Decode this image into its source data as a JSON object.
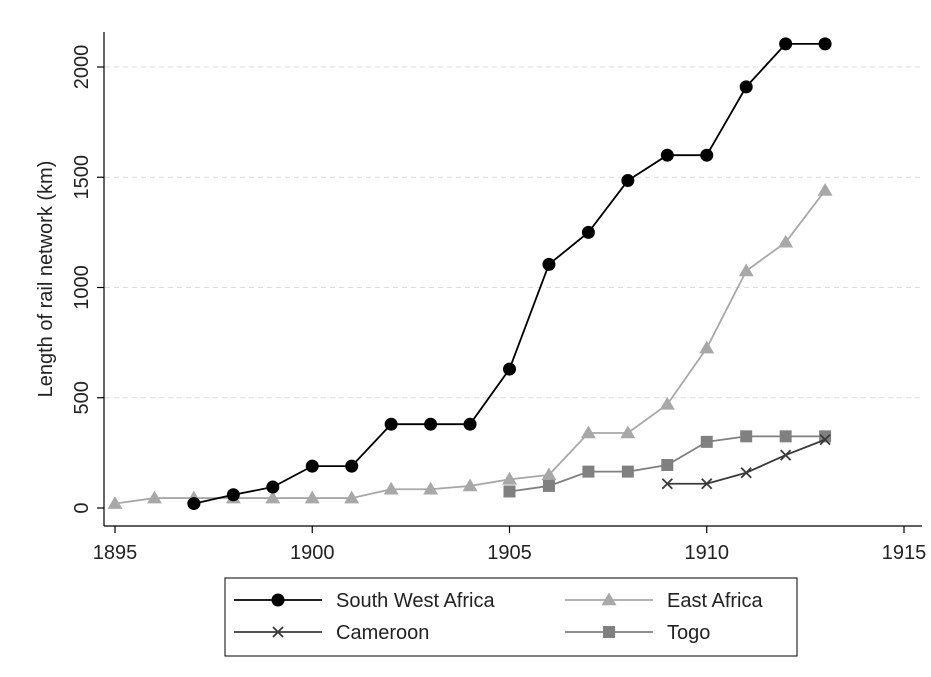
{
  "chart_data": {
    "type": "line",
    "title": "",
    "xlabel": "",
    "ylabel": "Length of rail network (km)",
    "xlim": [
      1895,
      1915
    ],
    "ylim": [
      0,
      2200
    ],
    "xticks": [
      1895,
      1900,
      1905,
      1910,
      1915
    ],
    "yticks": [
      0,
      500,
      1000,
      1500,
      2000
    ],
    "grid": "horizontal dashed",
    "legend_position": "bottom",
    "series": [
      {
        "name": "South West Africa",
        "color": "#000000",
        "marker": "circle",
        "x": [
          1897,
          1898,
          1899,
          1900,
          1901,
          1902,
          1903,
          1904,
          1905,
          1906,
          1907,
          1908,
          1909,
          1910,
          1911,
          1912,
          1913
        ],
        "y": [
          20,
          60,
          95,
          190,
          190,
          380,
          380,
          380,
          630,
          1105,
          1250,
          1485,
          1600,
          1600,
          1910,
          2105,
          2105
        ]
      },
      {
        "name": "East Africa",
        "color": "#a8a8a8",
        "marker": "triangle",
        "x": [
          1895,
          1896,
          1897,
          1898,
          1899,
          1900,
          1901,
          1902,
          1903,
          1904,
          1905,
          1906,
          1907,
          1908,
          1909,
          1910,
          1911,
          1912,
          1913
        ],
        "y": [
          20,
          45,
          45,
          45,
          45,
          45,
          45,
          85,
          85,
          100,
          130,
          150,
          340,
          340,
          470,
          725,
          1075,
          1205,
          1440
        ]
      },
      {
        "name": "Cameroon",
        "color": "#3a3a3a",
        "marker": "x",
        "x": [
          1909,
          1910,
          1911,
          1912,
          1913
        ],
        "y": [
          110,
          110,
          160,
          240,
          310
        ]
      },
      {
        "name": "Togo",
        "color": "#808080",
        "marker": "square",
        "x": [
          1905,
          1906,
          1907,
          1908,
          1909,
          1910,
          1911,
          1912,
          1913
        ],
        "y": [
          75,
          100,
          165,
          165,
          195,
          300,
          325,
          325,
          325
        ]
      }
    ]
  }
}
